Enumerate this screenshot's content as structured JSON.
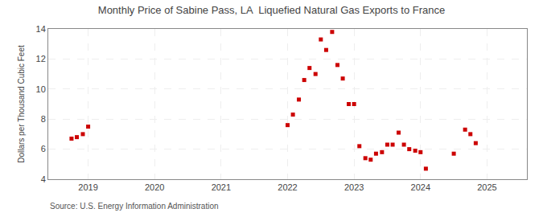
{
  "chart_data": {
    "type": "scatter",
    "title": "Monthly Price of Sabine Pass, LA  Liquefied Natural Gas Exports to France",
    "ylabel": "Dollars per Thousand Cubic Feet",
    "annotations": [
      "Source: U.S. Energy Information Administration"
    ],
    "x": [
      2018.75,
      2018.83,
      2018.92,
      2019.0,
      2022.0,
      2022.08,
      2022.17,
      2022.25,
      2022.33,
      2022.42,
      2022.5,
      2022.58,
      2022.67,
      2022.75,
      2022.83,
      2022.92,
      2023.0,
      2023.08,
      2023.17,
      2023.25,
      2023.33,
      2023.42,
      2023.5,
      2023.58,
      2023.67,
      2023.75,
      2023.83,
      2023.92,
      2024.0,
      2024.08,
      2024.5,
      2024.67,
      2024.75,
      2024.83
    ],
    "values": [
      6.7,
      6.8,
      7.0,
      7.5,
      7.6,
      8.3,
      9.3,
      10.6,
      11.4,
      11.0,
      13.3,
      12.6,
      13.8,
      11.6,
      10.7,
      9.0,
      9.0,
      6.2,
      5.4,
      5.3,
      5.7,
      5.8,
      6.3,
      6.3,
      7.1,
      6.3,
      6.0,
      5.9,
      5.8,
      4.7,
      5.7,
      7.3,
      7.0,
      6.4
    ],
    "color": "#cc0000",
    "marker": "square",
    "xlim": [
      2018.4,
      2025.6
    ],
    "xticks": [
      2019,
      2020,
      2021,
      2022,
      2023,
      2024,
      2025
    ],
    "ylim": [
      4,
      14
    ],
    "yticks": [
      4,
      6,
      8,
      10,
      12,
      14
    ],
    "grid": true
  }
}
